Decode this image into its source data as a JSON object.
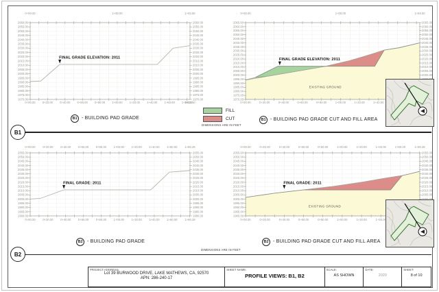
{
  "page": {
    "dimensions_note": "DIMENSIONS ARE IN FEET",
    "section_b1_badge": "B1",
    "section_b2_badge": "B2",
    "legend": {
      "fill_label": "FILL",
      "cut_label": "CUT",
      "fill_color": "#a6d39e",
      "cut_color": "#dd8d89"
    },
    "existing_color": "#fbf9d6"
  },
  "charts": [
    {
      "id": "b1-grade",
      "badge": "B1",
      "caption": "- BUILDING PAD GRADE",
      "annotation": "FINAL GRADE ELEVATION: 2011",
      "annotation_station": 34,
      "annotation_elev": 2011,
      "x_min": 0,
      "x_max": 183.5,
      "y_min": 1970,
      "y_max": 2060,
      "y_ticks": [
        "2060.00",
        "2055.00",
        "2050.00",
        "2045.00",
        "2040.00",
        "2035.00",
        "2030.00",
        "2025.00",
        "2020.00",
        "2015.00",
        "2010.00",
        "2005.00",
        "2000.00",
        "1995.00",
        "1990.00",
        "1985.00",
        "1980.00",
        "1975.00",
        "1970.00"
      ],
      "x_ticks_top": {
        "labels": [
          "0+00.00",
          "1+00.00",
          "1+83.50"
        ],
        "stations": [
          0,
          100,
          183.5
        ]
      },
      "x_ticks_bottom": {
        "labels": [
          "0+00.00",
          "0+20.00",
          "0+40.00",
          "0+60.00",
          "0+80.00",
          "1+00.00",
          "1+20.00",
          "1+40.00",
          "1+60.00",
          "1+80.00",
          "1+83.50"
        ],
        "stations": [
          0,
          20,
          40,
          60,
          80,
          100,
          120,
          140,
          160,
          180,
          183.5
        ]
      },
      "profile": [
        [
          0,
          1991
        ],
        [
          12,
          1991.5
        ],
        [
          34,
          2011
        ],
        [
          146,
          2011
        ],
        [
          164,
          2030
        ],
        [
          183.5,
          2033
        ]
      ]
    },
    {
      "id": "b1-cutfill",
      "badge": "B1",
      "caption": "- BUILDING PAD GRADE CUT AND FILL AREA",
      "annotation": "FINAL GRADE ELEVATION: 2011",
      "annotation_station": 36,
      "annotation_elev": 2011,
      "existing_ground_label": "EXISTING GROUND",
      "existing_label_station": 84,
      "existing_label_elev": 1984,
      "x_min": 0,
      "x_max": 183.5,
      "y_min": 1970,
      "y_max": 2065,
      "y_ticks": [
        "2065.00",
        "2060.00",
        "2055.00",
        "2050.00",
        "2045.00",
        "2040.00",
        "2035.00",
        "2030.00",
        "2025.00",
        "2020.00",
        "2015.00",
        "2010.00",
        "2005.00",
        "2000.00",
        "1995.00",
        "1990.00",
        "1985.00",
        "1980.00",
        "1975.00",
        "1970.00"
      ],
      "x_ticks_top": {
        "labels": [
          "0+00.00",
          "1+00.00",
          "1+83.50"
        ],
        "stations": [
          0,
          100,
          183.5
        ]
      },
      "x_ticks_bottom": {
        "labels": [
          "0+00.00",
          "0+20.00",
          "0+40.00",
          "0+60.00",
          "0+80.00",
          "1+00.00",
          "1+20.00",
          "1+40.00",
          "1+60.00",
          "1+80.00",
          "1+83.50"
        ],
        "stations": [
          0,
          20,
          40,
          60,
          80,
          100,
          120,
          140,
          160,
          180,
          183.5
        ]
      },
      "existing": [
        [
          0,
          1994
        ],
        [
          25,
          1999
        ],
        [
          50,
          2004
        ],
        [
          84.5,
          2011
        ],
        [
          110,
          2018
        ],
        [
          130,
          2025
        ],
        [
          146,
          2031
        ],
        [
          162,
          2034
        ],
        [
          183.5,
          2040
        ]
      ],
      "final_grade": [
        [
          0,
          1994
        ],
        [
          10,
          1997
        ],
        [
          34,
          2011
        ],
        [
          136,
          2011
        ],
        [
          146,
          2031
        ],
        [
          162,
          2034
        ],
        [
          183.5,
          2040
        ]
      ],
      "yellow_top": [
        [
          0,
          1994
        ],
        [
          25,
          1999
        ],
        [
          50,
          2004
        ],
        [
          84.5,
          2011
        ],
        [
          136,
          2011
        ],
        [
          146,
          2031
        ],
        [
          162,
          2034
        ],
        [
          183.5,
          2040
        ]
      ],
      "fill_area": [
        [
          10,
          1997
        ],
        [
          34,
          2011
        ],
        [
          84.5,
          2011
        ],
        [
          50,
          2004
        ],
        [
          25,
          1999
        ]
      ],
      "cut_area": [
        [
          84.5,
          2011
        ],
        [
          110,
          2018
        ],
        [
          130,
          2025
        ],
        [
          146,
          2031
        ],
        [
          136,
          2011
        ]
      ]
    },
    {
      "id": "b2-grade",
      "badge": "B2",
      "caption": "- BUILDING PAD GRADE",
      "annotation": "FINAL GRADE: 2011",
      "annotation_station": 38,
      "annotation_elev": 2011,
      "x_min": 0,
      "x_max": 180.28,
      "y_min": 1980,
      "y_max": 2055,
      "y_ticks": [
        "2055.00",
        "2050.00",
        "2045.00",
        "2040.00",
        "2035.00",
        "2030.00",
        "2025.00",
        "2020.00",
        "2015.00",
        "2010.00",
        "2005.00",
        "2000.00",
        "1995.00",
        "1990.00",
        "1985.00",
        "1980.00"
      ],
      "x_ticks_top": {
        "labels": [
          "0+00.00",
          "0+20.00",
          "0+40.00",
          "0+60.00",
          "0+80.00",
          "1+00.00",
          "1+20.00",
          "1+40.00",
          "1+60.00",
          "1+80.28"
        ],
        "stations": [
          0,
          20,
          40,
          60,
          80,
          100,
          120,
          140,
          160,
          180.28
        ]
      },
      "x_ticks_bottom": {
        "labels": [
          "0+00.00",
          "0+20.00",
          "0+40.00",
          "0+60.00",
          "0+80.00",
          "1+00.00",
          "1+20.00",
          "1+40.00",
          "1+60.00",
          "1+80.28"
        ],
        "stations": [
          0,
          20,
          40,
          60,
          80,
          100,
          120,
          140,
          160,
          180.28
        ]
      },
      "profile": [
        [
          0,
          2000
        ],
        [
          12,
          2001
        ],
        [
          38,
          2011
        ],
        [
          136,
          2011
        ],
        [
          157,
          2032
        ],
        [
          180.28,
          2034
        ]
      ]
    },
    {
      "id": "b2-cutfill",
      "badge": "B2",
      "caption": "- BUILDING PAD GRADE CUT AND FILL AREA",
      "annotation": "FINAL GRADE: 2011",
      "annotation_station": 40,
      "annotation_elev": 2011,
      "existing_ground_label": "EXISTING GROUND",
      "existing_label_station": 82,
      "existing_label_elev": 1990,
      "x_min": 0,
      "x_max": 180.28,
      "y_min": 1980,
      "y_max": 2055,
      "y_ticks": [
        "2055.00",
        "2050.00",
        "2045.00",
        "2040.00",
        "2035.00",
        "2030.00",
        "2025.00",
        "2020.00",
        "2015.00",
        "2010.00",
        "2005.00",
        "2000.00",
        "1995.00",
        "1990.00",
        "1985.00",
        "1980.00"
      ],
      "x_ticks_top": {
        "labels": [
          "0+00.00",
          "0+20.00",
          "0+40.00",
          "0+60.00",
          "0+80.00",
          "1+00.00",
          "1+20.00",
          "1+40.00",
          "1+60.00",
          "1+80.28"
        ],
        "stations": [
          0,
          20,
          40,
          60,
          80,
          100,
          120,
          140,
          160,
          180.28
        ]
      },
      "x_ticks_bottom": {
        "labels": [
          "0+00.00",
          "0+20.00",
          "0+40.00",
          "0+60.00",
          "0+80.00",
          "1+00.00",
          "1+20.00",
          "1+40.00",
          "1+60.00",
          "1+80.28"
        ],
        "stations": [
          0,
          20,
          40,
          60,
          80,
          100,
          120,
          140,
          160,
          180.28
        ]
      },
      "existing": [
        [
          0,
          2002
        ],
        [
          30,
          2007
        ],
        [
          60,
          2011
        ],
        [
          90,
          2015
        ],
        [
          120,
          2020
        ],
        [
          145,
          2025
        ],
        [
          162,
          2028
        ],
        [
          170,
          2030
        ],
        [
          180.28,
          2033
        ]
      ],
      "final_grade": [
        [
          0,
          2002
        ],
        [
          30,
          2007
        ],
        [
          60,
          2011
        ],
        [
          150,
          2011
        ],
        [
          162,
          2028
        ],
        [
          170,
          2030
        ],
        [
          180.28,
          2033
        ]
      ],
      "yellow_top": [
        [
          0,
          2002
        ],
        [
          30,
          2007
        ],
        [
          60,
          2011
        ],
        [
          150,
          2011
        ],
        [
          162,
          2028
        ],
        [
          170,
          2030
        ],
        [
          180.28,
          2033
        ]
      ],
      "cut_area": [
        [
          60,
          2011
        ],
        [
          90,
          2015
        ],
        [
          120,
          2020
        ],
        [
          145,
          2025
        ],
        [
          162,
          2028
        ],
        [
          150,
          2011
        ]
      ]
    }
  ],
  "titleblock": {
    "project_address_label": "PROJECT ADDRESS:",
    "project_address_line1": "Lot 39 BURWOOD DRIVE, LAKE MATHEWS, CA, 92570",
    "project_address_line2": "APN: 286-240-17",
    "sheet_name_label": "SHEET NAME:",
    "sheet_name": "PROFILE VIEWS: B1, B2",
    "scale_label": "SCALE:",
    "scale": "AS SHOWN",
    "date_label": "DATE:",
    "date": "2020",
    "sheet_label": "SHEET:",
    "sheet": "8 of 10"
  }
}
